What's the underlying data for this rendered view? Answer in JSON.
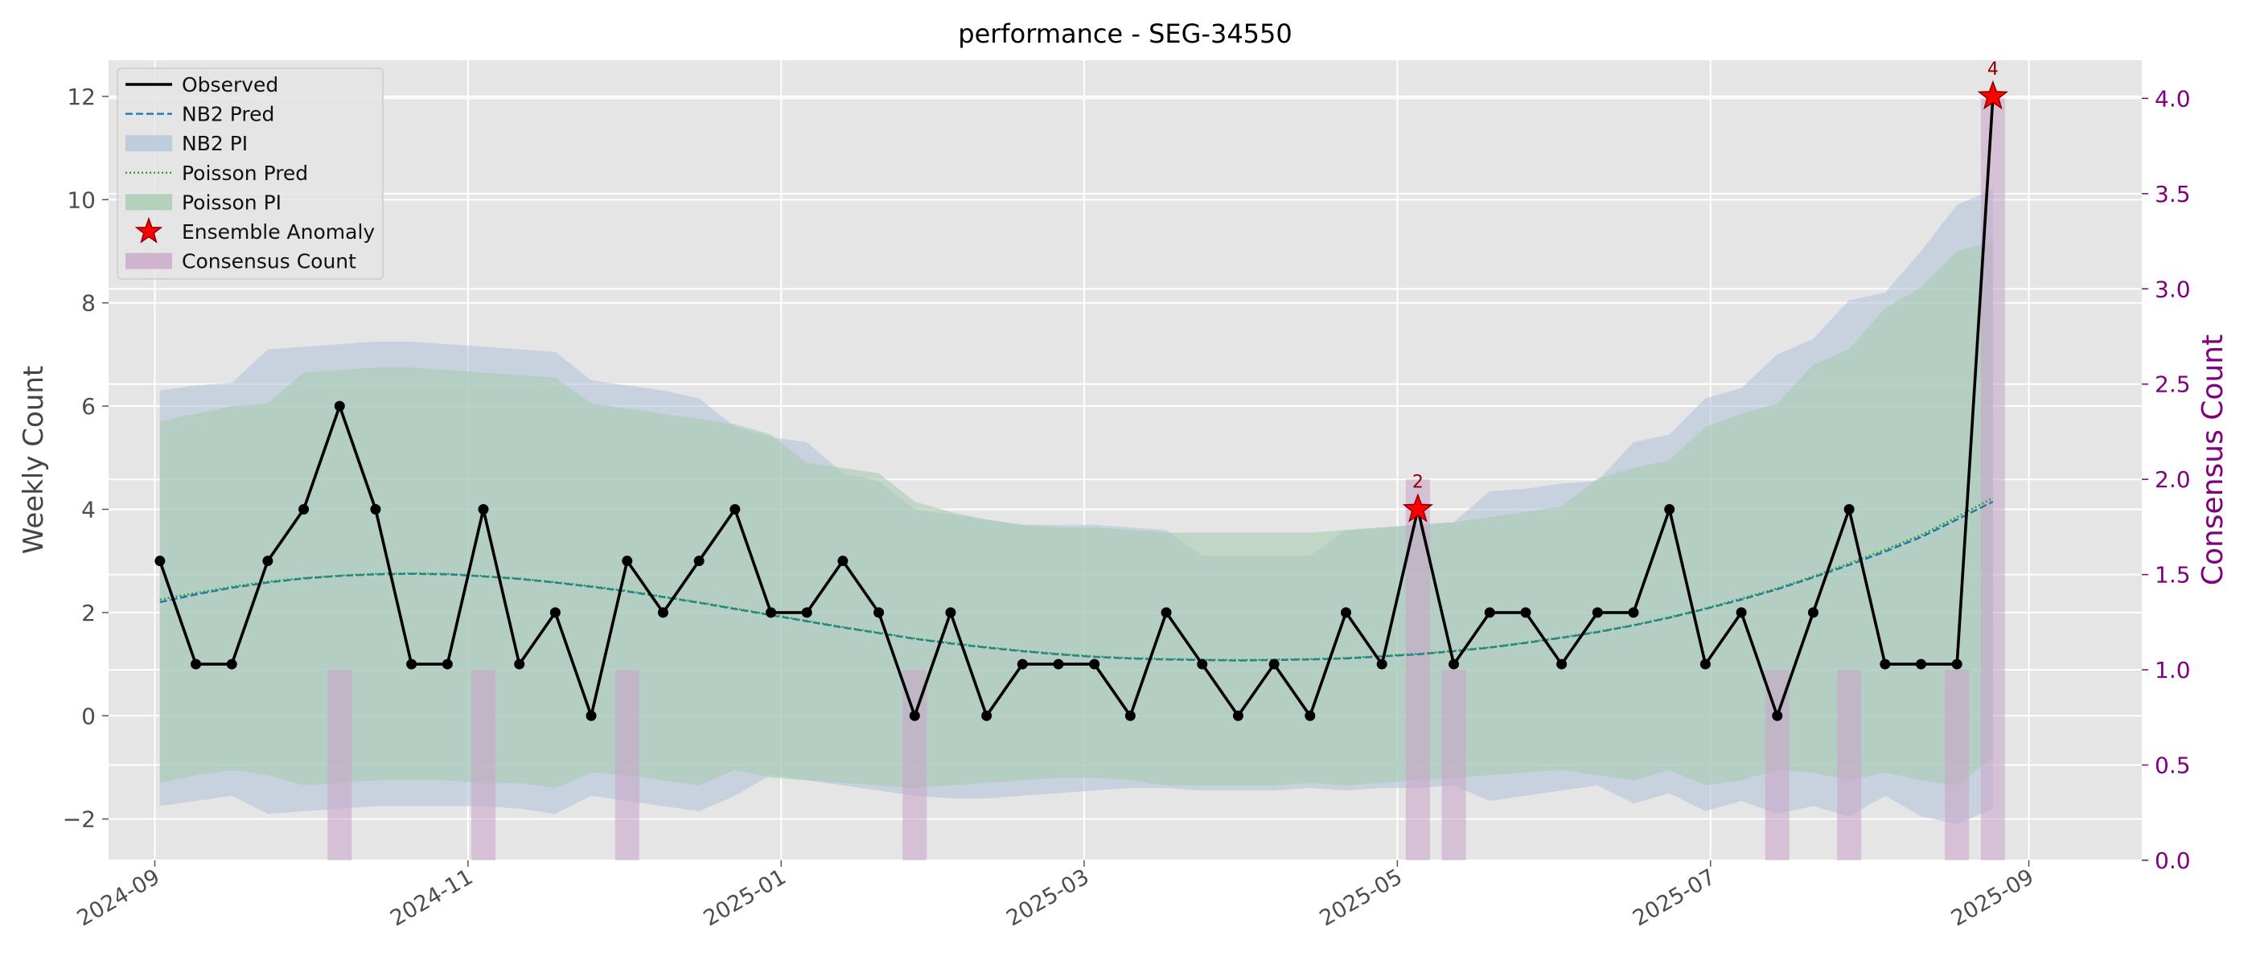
{
  "chart_data": {
    "type": "line",
    "title": "performance - SEG-34550",
    "ylabel": "Weekly Count",
    "y2label": "Consensus Count",
    "ylim": [
      -2.8,
      12.7
    ],
    "y2lim": [
      0,
      4.2
    ],
    "xlim": [
      "2024-08-23",
      "2025-09-23"
    ],
    "yticks": [
      -2,
      0,
      2,
      4,
      6,
      8,
      10,
      12
    ],
    "y2ticks": [
      0.0,
      0.5,
      1.0,
      1.5,
      2.0,
      2.5,
      3.0,
      3.5,
      4.0
    ],
    "xticks": [
      "2024-09-01",
      "2024-11-01",
      "2025-01-01",
      "2025-03-01",
      "2025-05-01",
      "2025-07-01",
      "2025-09-01"
    ],
    "xticklabels": [
      "2024-09",
      "2024-11",
      "2025-01",
      "2025-03",
      "2025-05",
      "2025-07",
      "2025-09"
    ],
    "y2ticklabels": [
      "0.0",
      "0.5",
      "1.0",
      "1.5",
      "2.0",
      "2.5",
      "3.0",
      "3.5",
      "4.0"
    ],
    "grid": true,
    "legend_position": "top-left",
    "legend": [
      "Observed",
      "NB2 Pred",
      "NB2 PI",
      "Poisson Pred",
      "Poisson PI",
      "Ensemble Anomaly",
      "Consensus Count"
    ],
    "colors": {
      "observed": "#000000",
      "nb2_pred": "#1f77b4",
      "nb2_pi": "#aec3d8",
      "poisson_pred": "#2ca02c",
      "poisson_pi": "#a9cbb2",
      "anomaly": "#ff0000",
      "consensus": "#c8a2c8",
      "secondary_axis": "#800080",
      "plot_bg": "#e5e5e5",
      "annotation": "#8b0000"
    },
    "dates": [
      "2024-09-02",
      "2024-09-09",
      "2024-09-16",
      "2024-09-23",
      "2024-09-30",
      "2024-10-07",
      "2024-10-14",
      "2024-10-21",
      "2024-10-28",
      "2024-11-04",
      "2024-11-11",
      "2024-11-18",
      "2024-11-25",
      "2024-12-02",
      "2024-12-09",
      "2024-12-16",
      "2024-12-23",
      "2024-12-30",
      "2025-01-06",
      "2025-01-13",
      "2025-01-20",
      "2025-01-27",
      "2025-02-03",
      "2025-02-10",
      "2025-02-17",
      "2025-02-24",
      "2025-03-03",
      "2025-03-10",
      "2025-03-17",
      "2025-03-24",
      "2025-03-31",
      "2025-04-07",
      "2025-04-14",
      "2025-04-21",
      "2025-04-28",
      "2025-05-05",
      "2025-05-12",
      "2025-05-19",
      "2025-05-26",
      "2025-06-02",
      "2025-06-09",
      "2025-06-16",
      "2025-06-23",
      "2025-06-30",
      "2025-07-07",
      "2025-07-14",
      "2025-07-21",
      "2025-07-28",
      "2025-08-04",
      "2025-08-11",
      "2025-08-18",
      "2025-08-25"
    ],
    "observed": [
      3,
      1,
      1,
      3,
      4,
      6,
      4,
      1,
      1,
      4,
      1,
      2,
      0,
      3,
      2,
      3,
      4,
      2,
      2,
      3,
      2,
      0,
      2,
      0,
      1,
      1,
      1,
      0,
      2,
      1,
      0,
      1,
      0,
      2,
      1,
      4,
      1,
      2,
      2,
      1,
      2,
      2,
      4,
      1,
      2,
      0,
      2,
      4,
      1,
      1,
      1,
      12
    ],
    "nb2_pred": [
      2.2,
      2.35,
      2.48,
      2.58,
      2.66,
      2.71,
      2.74,
      2.75,
      2.74,
      2.7,
      2.65,
      2.58,
      2.5,
      2.41,
      2.3,
      2.19,
      2.07,
      1.95,
      1.83,
      1.71,
      1.6,
      1.49,
      1.4,
      1.32,
      1.25,
      1.19,
      1.14,
      1.11,
      1.09,
      1.08,
      1.07,
      1.08,
      1.09,
      1.11,
      1.15,
      1.19,
      1.25,
      1.32,
      1.41,
      1.51,
      1.62,
      1.75,
      1.9,
      2.07,
      2.25,
      2.45,
      2.68,
      2.92,
      3.18,
      3.46,
      3.8,
      4.15
    ],
    "poisson_pred": [
      2.25,
      2.38,
      2.5,
      2.6,
      2.67,
      2.72,
      2.75,
      2.76,
      2.75,
      2.71,
      2.66,
      2.59,
      2.51,
      2.42,
      2.31,
      2.2,
      2.08,
      1.96,
      1.84,
      1.72,
      1.61,
      1.5,
      1.41,
      1.33,
      1.26,
      1.2,
      1.15,
      1.12,
      1.1,
      1.09,
      1.08,
      1.09,
      1.1,
      1.12,
      1.16,
      1.2,
      1.26,
      1.33,
      1.42,
      1.52,
      1.63,
      1.76,
      1.91,
      2.08,
      2.27,
      2.47,
      2.7,
      2.95,
      3.22,
      3.5,
      3.85,
      4.22
    ],
    "nb2_pi_upper": [
      6.3,
      6.4,
      6.45,
      7.1,
      7.15,
      7.2,
      7.25,
      7.25,
      7.2,
      7.15,
      7.1,
      7.05,
      6.5,
      6.4,
      6.3,
      6.15,
      5.6,
      5.4,
      5.3,
      4.7,
      4.55,
      4.0,
      3.9,
      3.8,
      3.7,
      3.7,
      3.7,
      3.65,
      3.6,
      3.1,
      3.1,
      3.1,
      3.1,
      3.6,
      3.65,
      3.7,
      3.75,
      4.35,
      4.4,
      4.5,
      4.55,
      5.3,
      5.45,
      6.15,
      6.35,
      7.0,
      7.3,
      8.05,
      8.2,
      9.0,
      9.9,
      10.2
    ],
    "nb2_pi_lower": [
      -1.75,
      -1.65,
      -1.55,
      -1.9,
      -1.85,
      -1.8,
      -1.75,
      -1.75,
      -1.75,
      -1.75,
      -1.8,
      -1.9,
      -1.55,
      -1.65,
      -1.75,
      -1.85,
      -1.55,
      -1.15,
      -1.25,
      -1.35,
      -1.45,
      -1.55,
      -1.6,
      -1.6,
      -1.55,
      -1.5,
      -1.45,
      -1.4,
      -1.4,
      -1.45,
      -1.45,
      -1.45,
      -1.4,
      -1.45,
      -1.4,
      -1.4,
      -1.35,
      -1.65,
      -1.55,
      -1.45,
      -1.35,
      -1.7,
      -1.5,
      -1.85,
      -1.65,
      -1.9,
      -1.75,
      -1.95,
      -1.55,
      -1.95,
      -2.1,
      -1.8
    ],
    "poisson_pi_upper": [
      5.7,
      5.85,
      6.0,
      6.05,
      6.65,
      6.7,
      6.75,
      6.75,
      6.7,
      6.65,
      6.6,
      6.55,
      6.05,
      5.95,
      5.85,
      5.75,
      5.65,
      5.45,
      4.9,
      4.8,
      4.7,
      4.15,
      3.95,
      3.8,
      3.7,
      3.65,
      3.65,
      3.6,
      3.55,
      3.55,
      3.55,
      3.55,
      3.55,
      3.6,
      3.65,
      3.7,
      3.75,
      3.85,
      3.95,
      4.05,
      4.6,
      4.8,
      4.95,
      5.6,
      5.85,
      6.05,
      6.8,
      7.1,
      7.9,
      8.3,
      9.0,
      9.2
    ],
    "poisson_pi_lower": [
      -1.3,
      -1.15,
      -1.05,
      -1.15,
      -1.35,
      -1.3,
      -1.25,
      -1.25,
      -1.25,
      -1.3,
      -1.3,
      -1.4,
      -1.1,
      -1.15,
      -1.25,
      -1.35,
      -1.05,
      -1.2,
      -1.25,
      -1.3,
      -1.35,
      -1.4,
      -1.35,
      -1.3,
      -1.25,
      -1.2,
      -1.2,
      -1.25,
      -1.35,
      -1.35,
      -1.35,
      -1.35,
      -1.3,
      -1.35,
      -1.3,
      -1.25,
      -1.2,
      -1.15,
      -1.1,
      -1.05,
      -1.15,
      -1.25,
      -1.05,
      -1.35,
      -1.25,
      -1.05,
      -1.1,
      -1.25,
      -1.1,
      -1.25,
      -1.35,
      -0.8
    ],
    "anomalies": [
      {
        "date": "2025-05-05",
        "value": 4,
        "label": "2"
      },
      {
        "date": "2025-08-25",
        "value": 12,
        "label": "4"
      }
    ],
    "consensus": [
      {
        "date": "2024-10-07",
        "count": 1
      },
      {
        "date": "2024-11-04",
        "count": 1
      },
      {
        "date": "2024-12-02",
        "count": 1
      },
      {
        "date": "2025-01-27",
        "count": 1
      },
      {
        "date": "2025-05-05",
        "count": 2
      },
      {
        "date": "2025-05-12",
        "count": 1
      },
      {
        "date": "2025-07-14",
        "count": 1
      },
      {
        "date": "2025-07-28",
        "count": 1
      },
      {
        "date": "2025-08-18",
        "count": 1
      },
      {
        "date": "2025-08-25",
        "count": 4
      }
    ]
  }
}
